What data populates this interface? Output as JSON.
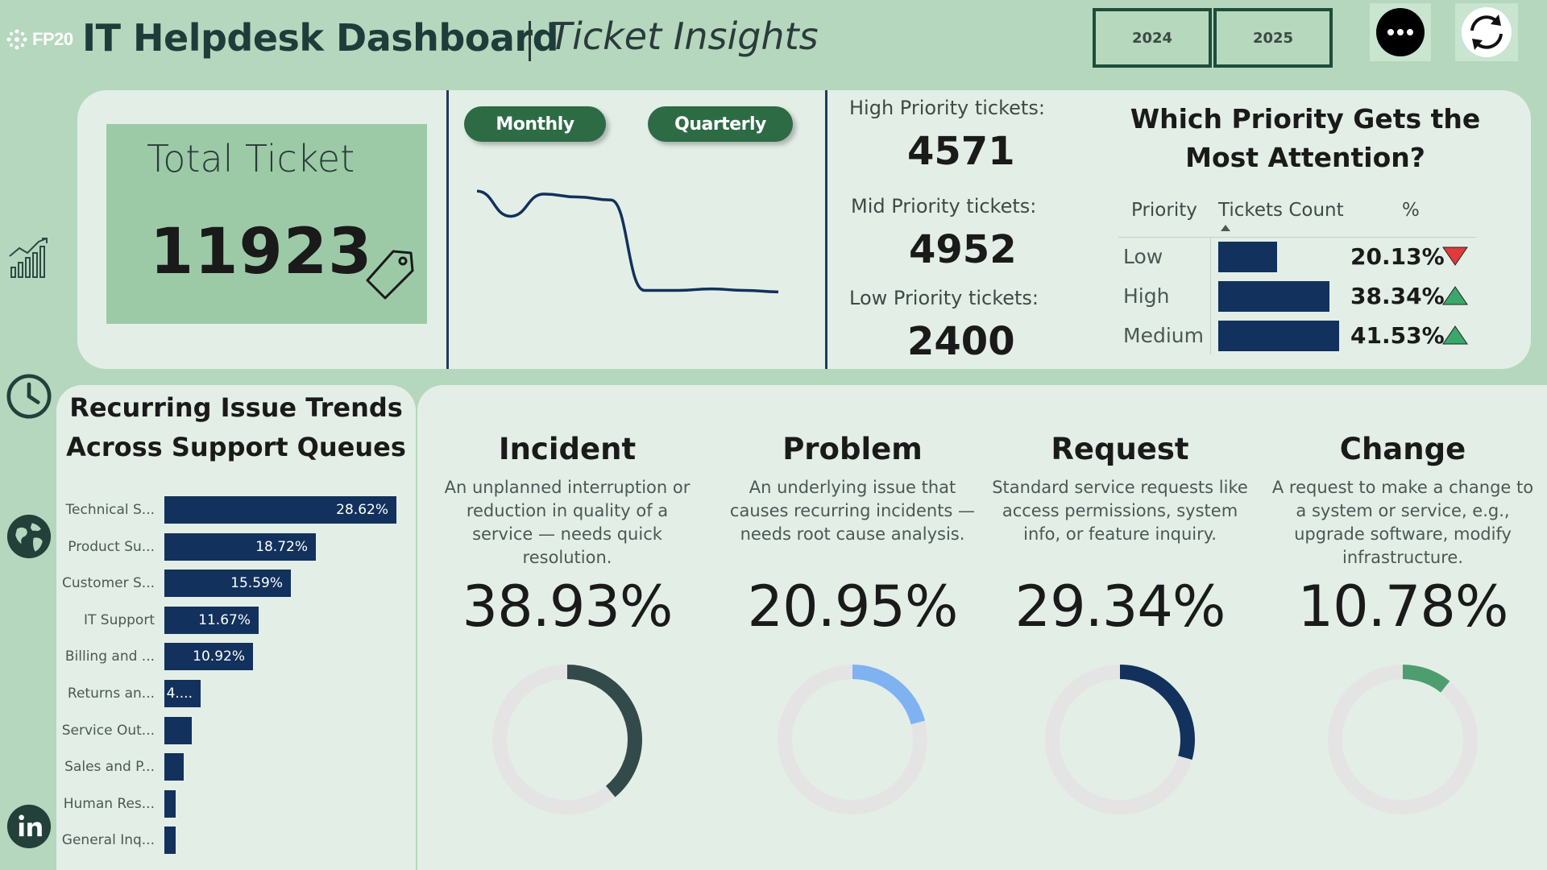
{
  "header": {
    "logo_text": "FP20",
    "title": "IT Helpdesk Dashboard",
    "subtitle": "Ticket Insights",
    "years": [
      "2024",
      "2025"
    ]
  },
  "total": {
    "label": "Total Ticket",
    "value": "11923"
  },
  "trend_toggle": {
    "monthly": "Monthly",
    "quarterly": "Quarterly"
  },
  "trend_line": {
    "values": [
      95,
      78,
      93,
      91,
      89,
      28,
      28,
      29,
      28,
      27
    ]
  },
  "priority_counts": {
    "high_label": "High Priority tickets:",
    "high_value": "4571",
    "mid_label": "Mid Priority tickets:",
    "mid_value": "4952",
    "low_label": "Low Priority tickets:",
    "low_value": "2400"
  },
  "attention": {
    "title": "Which Priority Gets the Most Attention?",
    "col_priority": "Priority",
    "col_count": "Tickets Count",
    "col_pct": "%",
    "rows": [
      {
        "priority": "Low",
        "pct_label": "20.13%",
        "pct": 20.13,
        "trend": "down",
        "trend_color": "#e03a3a"
      },
      {
        "priority": "High",
        "pct_label": "38.34%",
        "pct": 38.34,
        "trend": "up",
        "trend_color": "#3aa86b"
      },
      {
        "priority": "Medium",
        "pct_label": "41.53%",
        "pct": 41.53,
        "trend": "up",
        "trend_color": "#3aa86b"
      }
    ]
  },
  "recurring": {
    "title_line1": "Recurring Issue Trends",
    "title_line2": "Across Support Queues",
    "items": [
      {
        "label": "Technical S...",
        "value_label": "28.62%",
        "value": 28.62
      },
      {
        "label": "Product Su...",
        "value_label": "18.72%",
        "value": 18.72
      },
      {
        "label": "Customer S...",
        "value_label": "15.59%",
        "value": 15.59
      },
      {
        "label": "IT Support",
        "value_label": "11.67%",
        "value": 11.67
      },
      {
        "label": "Billing and ...",
        "value_label": "10.92%",
        "value": 10.92
      },
      {
        "label": "Returns an...",
        "value_label": "4....",
        "value": 4.5
      },
      {
        "label": "Service Out...",
        "value_label": "",
        "value": 3.4
      },
      {
        "label": "Sales and P...",
        "value_label": "",
        "value": 2.4
      },
      {
        "label": "Human Res...",
        "value_label": "",
        "value": 1.4
      },
      {
        "label": "General Inq...",
        "value_label": "",
        "value": 1.2
      }
    ]
  },
  "types": [
    {
      "name": "Incident",
      "desc": "An unplanned interruption or reduction in quality of a service — needs quick resolution.",
      "pct_label": "38.93%",
      "pct": 38.93,
      "color": "#334a4a"
    },
    {
      "name": "Problem",
      "desc": "An underlying issue that causes recurring incidents — needs root cause analysis.",
      "pct_label": "20.95%",
      "pct": 20.95,
      "color": "#7fb2f0"
    },
    {
      "name": "Request",
      "desc": "Standard service requests like access permissions, system info, or feature inquiry.",
      "pct_label": "29.34%",
      "pct": 29.34,
      "color": "#12315c"
    },
    {
      "name": "Change",
      "desc": "A request to make a change to a system or service, e.g., upgrade software, modify infrastructure.",
      "pct_label": "10.78%",
      "pct": 10.78,
      "color": "#4d9e6e"
    }
  ],
  "colors": {
    "bar": "#12315c",
    "donut_track": "#e4e4e4",
    "accent_green": "#2d6b45"
  },
  "icons": [
    "logo-icon",
    "growth-chart-icon",
    "clock-icon",
    "globe-icon",
    "linkedin-icon",
    "more-icon",
    "refresh-icon",
    "tag-icon"
  ]
}
